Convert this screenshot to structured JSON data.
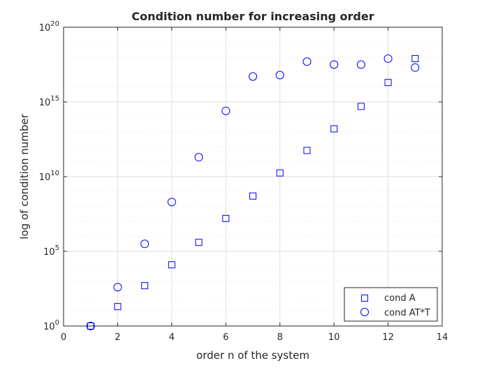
{
  "chart_data": {
    "type": "scatter",
    "title": "Condition number for increasing order",
    "xlabel": "order n of the system",
    "ylabel": "log of condition number",
    "xlim": [
      0,
      14
    ],
    "ylim_log10": [
      0,
      20
    ],
    "yscale": "log",
    "grid": true,
    "minor_grid": true,
    "legend_position": "bottom-right",
    "x_ticks": [
      "0",
      "2",
      "4",
      "6",
      "8",
      "10",
      "12",
      "14"
    ],
    "x_tick_values": [
      0,
      2,
      4,
      6,
      8,
      10,
      12,
      14
    ],
    "y_ticks": [
      {
        "base": "10",
        "exp": "0",
        "log10": 0
      },
      {
        "base": "10",
        "exp": "5",
        "log10": 5
      },
      {
        "base": "10",
        "exp": "10",
        "log10": 10
      },
      {
        "base": "10",
        "exp": "15",
        "log10": 15
      },
      {
        "base": "10",
        "exp": "20",
        "log10": 20
      }
    ],
    "series": [
      {
        "name": "cond A",
        "marker": "square",
        "color": "#0000ff",
        "x": [
          1,
          2,
          3,
          4,
          5,
          6,
          7,
          8,
          9,
          10,
          11,
          12,
          13
        ],
        "log10_y": [
          0,
          1.3,
          2.7,
          4.1,
          5.6,
          7.2,
          8.7,
          10.25,
          11.75,
          13.2,
          14.7,
          16.3,
          17.9
        ]
      },
      {
        "name": "cond AT*T",
        "marker": "circle",
        "color": "#0000ff",
        "x": [
          1,
          2,
          3,
          4,
          5,
          6,
          7,
          8,
          9,
          10,
          11,
          12,
          13
        ],
        "log10_y": [
          0,
          2.6,
          5.5,
          8.3,
          11.3,
          14.4,
          16.7,
          16.8,
          17.7,
          17.5,
          17.5,
          17.9,
          17.3
        ]
      }
    ]
  }
}
